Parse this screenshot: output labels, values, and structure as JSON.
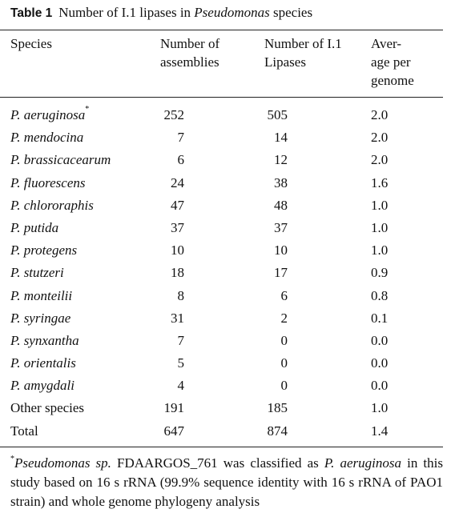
{
  "caption": {
    "label": "Table 1",
    "text_before": "Number of I.1 lipases in ",
    "text_italic": "Pseudomonas",
    "text_after": " species"
  },
  "headers": {
    "species": "Species",
    "assemblies": "Number of\nassemblies",
    "lipases": "Number of I.1\nLipases",
    "average": "Aver-\nage per\ngenome"
  },
  "rows": [
    {
      "species": "P. aeruginosa",
      "italic": true,
      "mark": "*",
      "assemblies": "252",
      "lipases": "505",
      "average": "2.0"
    },
    {
      "species": "P. mendocina",
      "italic": true,
      "mark": "",
      "assemblies": "7",
      "lipases": "14",
      "average": "2.0"
    },
    {
      "species": "P. brassicacearum",
      "italic": true,
      "mark": "",
      "assemblies": "6",
      "lipases": "12",
      "average": "2.0"
    },
    {
      "species": "P. fluorescens",
      "italic": true,
      "mark": "",
      "assemblies": "24",
      "lipases": "38",
      "average": "1.6"
    },
    {
      "species": "P. chlororaphis",
      "italic": true,
      "mark": "",
      "assemblies": "47",
      "lipases": "48",
      "average": "1.0"
    },
    {
      "species": "P. putida",
      "italic": true,
      "mark": "",
      "assemblies": "37",
      "lipases": "37",
      "average": "1.0"
    },
    {
      "species": "P. protegens",
      "italic": true,
      "mark": "",
      "assemblies": "10",
      "lipases": "10",
      "average": "1.0"
    },
    {
      "species": "P. stutzeri",
      "italic": true,
      "mark": "",
      "assemblies": "18",
      "lipases": "17",
      "average": "0.9"
    },
    {
      "species": "P. monteilii",
      "italic": true,
      "mark": "",
      "assemblies": "8",
      "lipases": "6",
      "average": "0.8"
    },
    {
      "species": "P. syringae",
      "italic": true,
      "mark": "",
      "assemblies": "31",
      "lipases": "2",
      "average": "0.1"
    },
    {
      "species": "P. synxantha",
      "italic": true,
      "mark": "",
      "assemblies": "7",
      "lipases": "0",
      "average": "0.0"
    },
    {
      "species": "P. orientalis",
      "italic": true,
      "mark": "",
      "assemblies": "5",
      "lipases": "0",
      "average": "0.0"
    },
    {
      "species": "P. amygdali",
      "italic": true,
      "mark": "",
      "assemblies": "4",
      "lipases": "0",
      "average": "0.0"
    },
    {
      "species": "Other species",
      "italic": false,
      "mark": "",
      "assemblies": "191",
      "lipases": "185",
      "average": "1.0"
    },
    {
      "species": "Total",
      "italic": false,
      "mark": "",
      "assemblies": "647",
      "lipases": "874",
      "average": "1.4"
    }
  ],
  "footnote": {
    "mark": "*",
    "italic_1": "Pseudomonas sp.",
    "text_1": " FDAARGOS_761 was classified as ",
    "italic_2": "P. aeruginosa",
    "text_2": " in this study based on 16 s rRNA (99.9% sequence identity with 16 s rRNA of PAO1 strain) and whole genome phylogeny analysis"
  }
}
